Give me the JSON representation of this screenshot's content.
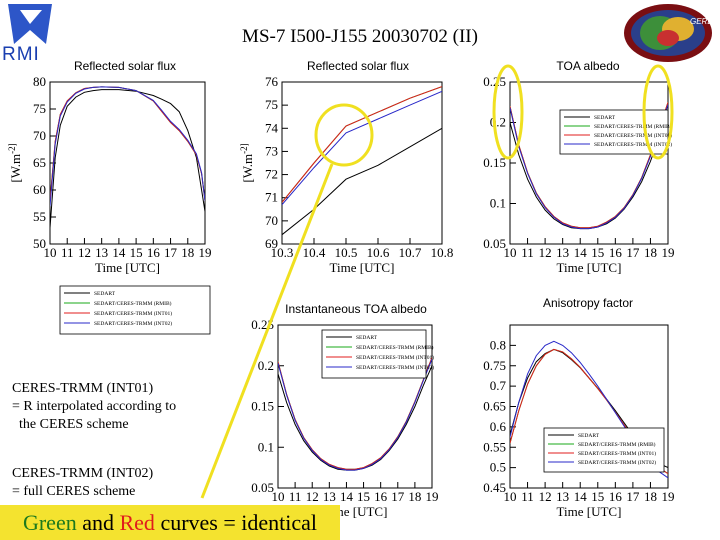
{
  "header": {
    "title": "MS-7 I500-J155 20030702 (II)"
  },
  "logo": {
    "text": "RMI"
  },
  "badge": {
    "text": "GERB"
  },
  "notes": {
    "int01_lines": [
      "CERES-TRMM (INT01)",
      "= R interpolated according to",
      "  the CERES scheme"
    ],
    "int02_lines": [
      "CERES-TRMM (INT02)",
      "= full CERES scheme"
    ]
  },
  "banner": {
    "green_word": "Green",
    "and_word": " and ",
    "red_word": "Red",
    "rest": " curves = identical"
  },
  "legend_entries": [
    "SEDART",
    "SEDART/CERES-TRMM (RMIB)",
    "SEDART/CERES-TRMM (INT01)",
    "SEDART/CERES-TRMM (INT02)"
  ],
  "series_colors": [
    "#000000",
    "#1aa81a",
    "#e01c1c",
    "#2828c8"
  ],
  "highlight_color": "#f0e020",
  "chart_data": [
    {
      "id": "flux-full",
      "type": "line",
      "title": "Reflected solar flux",
      "xlabel": "Time [UTC]",
      "ylabel": "[W.m^-2]",
      "xlim": [
        10,
        19
      ],
      "ylim": [
        50,
        80
      ],
      "xticks": [
        10,
        11,
        12,
        13,
        14,
        15,
        16,
        17,
        18,
        19
      ],
      "xtick_labels": [
        "10",
        "11",
        "12",
        "13",
        "14",
        "15",
        "16",
        "17",
        "18",
        "19"
      ],
      "yticks": [
        50,
        55,
        60,
        65,
        70,
        75,
        80
      ],
      "grid": false,
      "legend": "separate",
      "series": [
        {
          "x": [
            10,
            10.3,
            10.6,
            11,
            11.5,
            12,
            12.5,
            13,
            14,
            15,
            16,
            16.5,
            17,
            17.5,
            18,
            18.5,
            18.8,
            19
          ],
          "y": [
            53,
            66,
            72,
            75.5,
            77.2,
            78.1,
            78.4,
            78.6,
            78.6,
            78.3,
            77.5,
            76.8,
            76,
            74.5,
            71,
            66,
            60,
            56
          ]
        },
        {
          "x": [
            10,
            10.3,
            10.6,
            11,
            11.5,
            12,
            12.5,
            13,
            14,
            15,
            16,
            16.5,
            17,
            17.5,
            18,
            18.5,
            18.8,
            19
          ],
          "y": [
            58,
            69,
            74,
            76.5,
            78,
            78.8,
            79,
            79.1,
            79,
            78.4,
            76.5,
            74.5,
            72.5,
            71,
            69,
            66.5,
            63,
            58
          ]
        },
        {
          "x": [
            10,
            10.3,
            10.6,
            11,
            11.5,
            12,
            12.5,
            13,
            14,
            15,
            16,
            16.5,
            17,
            17.5,
            18,
            18.5,
            18.8,
            19
          ],
          "y": [
            58,
            69,
            74,
            76.5,
            78,
            78.8,
            79,
            79.1,
            79,
            78.4,
            76.5,
            74.5,
            72.5,
            71,
            69,
            66.5,
            63,
            58
          ]
        },
        {
          "x": [
            10,
            10.3,
            10.6,
            11,
            11.5,
            12,
            12.5,
            13,
            14,
            15,
            16,
            16.5,
            17,
            17.5,
            18,
            18.5,
            18.8,
            19
          ],
          "y": [
            57,
            68.5,
            73.7,
            76.3,
            77.9,
            78.7,
            79,
            79.1,
            79,
            78.4,
            76.6,
            74.7,
            72.7,
            71.2,
            69.2,
            66.7,
            63.2,
            58
          ]
        }
      ]
    },
    {
      "id": "flux-zoom",
      "type": "line",
      "title": "Reflected solar flux",
      "xlabel": "Time [UTC]",
      "ylabel": "[W.m^-2]",
      "xlim": [
        10.3,
        10.8
      ],
      "ylim": [
        69,
        76
      ],
      "xticks": [
        10.3,
        10.4,
        10.5,
        10.6,
        10.7,
        10.8
      ],
      "xtick_labels": [
        "10.3",
        "10.4",
        "10.5",
        "10.6",
        "10.7",
        "10.8"
      ],
      "yticks": [
        69,
        70,
        71,
        72,
        73,
        74,
        75,
        76
      ],
      "grid": false,
      "series": [
        {
          "x": [
            10.3,
            10.4,
            10.5,
            10.6,
            10.7,
            10.8
          ],
          "y": [
            69.4,
            70.5,
            71.8,
            72.4,
            73.2,
            74
          ]
        },
        {
          "x": [
            10.3,
            10.4,
            10.5,
            10.6,
            10.7,
            10.8
          ],
          "y": [
            70.8,
            72.5,
            74.1,
            74.7,
            75.3,
            75.8
          ]
        },
        {
          "x": [
            10.3,
            10.4,
            10.5,
            10.6,
            10.7,
            10.8
          ],
          "y": [
            70.8,
            72.5,
            74.1,
            74.7,
            75.3,
            75.8
          ]
        },
        {
          "x": [
            10.3,
            10.4,
            10.5,
            10.6,
            10.7,
            10.8
          ],
          "y": [
            70.7,
            72.3,
            73.8,
            74.4,
            75,
            75.6
          ]
        }
      ]
    },
    {
      "id": "toa-albedo",
      "type": "line",
      "title": "TOA albedo",
      "xlabel": "Time [UTC]",
      "xlim": [
        10,
        19
      ],
      "ylim": [
        0.05,
        0.25
      ],
      "xticks": [
        10,
        11,
        12,
        13,
        14,
        15,
        16,
        17,
        18,
        19
      ],
      "xtick_labels": [
        "10",
        "11",
        "12",
        "13",
        "14",
        "15",
        "16",
        "17",
        "18",
        "19"
      ],
      "yticks": [
        0.05,
        0.1,
        0.15,
        0.2,
        0.25
      ],
      "ytick_labels": [
        "0.05",
        "0.1",
        "0.15",
        "0.2",
        "0.25"
      ],
      "grid": false,
      "legend": "top-right",
      "series": [
        {
          "x": [
            10,
            10.5,
            11,
            11.5,
            12,
            12.5,
            13,
            13.5,
            14,
            14.5,
            15,
            15.5,
            16,
            16.5,
            17,
            17.5,
            18,
            18.5,
            19
          ],
          "y": [
            0.2,
            0.16,
            0.13,
            0.108,
            0.092,
            0.081,
            0.074,
            0.07,
            0.069,
            0.069,
            0.071,
            0.075,
            0.082,
            0.093,
            0.108,
            0.127,
            0.152,
            0.182,
            0.21
          ]
        },
        {
          "x": [
            10,
            10.5,
            11,
            11.5,
            12,
            12.5,
            13,
            13.5,
            14,
            14.5,
            15,
            15.5,
            16,
            16.5,
            17,
            17.5,
            18,
            18.5,
            19
          ],
          "y": [
            0.22,
            0.172,
            0.138,
            0.113,
            0.096,
            0.084,
            0.076,
            0.072,
            0.07,
            0.07,
            0.072,
            0.077,
            0.084,
            0.095,
            0.111,
            0.132,
            0.16,
            0.192,
            0.225
          ]
        },
        {
          "x": [
            10,
            10.5,
            11,
            11.5,
            12,
            12.5,
            13,
            13.5,
            14,
            14.5,
            15,
            15.5,
            16,
            16.5,
            17,
            17.5,
            18,
            18.5,
            19
          ],
          "y": [
            0.22,
            0.172,
            0.138,
            0.113,
            0.096,
            0.084,
            0.076,
            0.072,
            0.07,
            0.07,
            0.072,
            0.077,
            0.084,
            0.095,
            0.111,
            0.132,
            0.16,
            0.192,
            0.225
          ]
        },
        {
          "x": [
            10,
            10.5,
            11,
            11.5,
            12,
            12.5,
            13,
            13.5,
            14,
            14.5,
            15,
            15.5,
            16,
            16.5,
            17,
            17.5,
            18,
            18.5,
            19
          ],
          "y": [
            0.218,
            0.17,
            0.137,
            0.112,
            0.095,
            0.083,
            0.075,
            0.071,
            0.069,
            0.069,
            0.071,
            0.076,
            0.083,
            0.094,
            0.11,
            0.131,
            0.158,
            0.19,
            0.222
          ]
        }
      ]
    },
    {
      "id": "inst-toa-albedo",
      "type": "line",
      "title": "Instantaneous TOA albedo",
      "xlabel": "Time [UTC]",
      "xlim": [
        10,
        19
      ],
      "ylim": [
        0.05,
        0.25
      ],
      "xticks": [
        10,
        11,
        12,
        13,
        14,
        15,
        16,
        17,
        18,
        19
      ],
      "xtick_labels": [
        "10",
        "11",
        "12",
        "13",
        "14",
        "15",
        "16",
        "17",
        "18",
        "19"
      ],
      "yticks": [
        0.05,
        0.1,
        0.15,
        0.2,
        0.25
      ],
      "ytick_labels": [
        "0.05",
        "0.1",
        "0.15",
        "0.2",
        "0.25"
      ],
      "grid": false,
      "legend": "top-right",
      "series": [
        {
          "x": [
            10,
            10.5,
            11,
            11.5,
            12,
            12.5,
            13,
            13.5,
            14,
            14.5,
            15,
            15.5,
            16,
            16.5,
            17,
            17.5,
            18,
            18.5,
            19
          ],
          "y": [
            0.19,
            0.155,
            0.128,
            0.108,
            0.094,
            0.084,
            0.077,
            0.073,
            0.072,
            0.072,
            0.074,
            0.078,
            0.085,
            0.096,
            0.11,
            0.128,
            0.15,
            0.176,
            0.2
          ]
        },
        {
          "x": [
            10,
            10.5,
            11,
            11.5,
            12,
            12.5,
            13,
            13.5,
            14,
            14.5,
            15,
            15.5,
            16,
            16.5,
            17,
            17.5,
            18,
            18.5,
            19
          ],
          "y": [
            0.205,
            0.165,
            0.134,
            0.112,
            0.097,
            0.086,
            0.079,
            0.075,
            0.073,
            0.073,
            0.075,
            0.08,
            0.087,
            0.098,
            0.113,
            0.132,
            0.156,
            0.183,
            0.21
          ]
        },
        {
          "x": [
            10,
            10.5,
            11,
            11.5,
            12,
            12.5,
            13,
            13.5,
            14,
            14.5,
            15,
            15.5,
            16,
            16.5,
            17,
            17.5,
            18,
            18.5,
            19
          ],
          "y": [
            0.205,
            0.165,
            0.134,
            0.112,
            0.097,
            0.086,
            0.079,
            0.075,
            0.073,
            0.073,
            0.075,
            0.08,
            0.087,
            0.098,
            0.113,
            0.132,
            0.156,
            0.183,
            0.21
          ]
        },
        {
          "x": [
            10,
            10.5,
            11,
            11.5,
            12,
            12.5,
            13,
            13.5,
            14,
            14.5,
            15,
            15.5,
            16,
            16.5,
            17,
            17.5,
            18,
            18.5,
            19
          ],
          "y": [
            0.203,
            0.164,
            0.133,
            0.111,
            0.096,
            0.085,
            0.078,
            0.074,
            0.072,
            0.072,
            0.074,
            0.079,
            0.086,
            0.097,
            0.112,
            0.131,
            0.155,
            0.182,
            0.208
          ]
        }
      ]
    },
    {
      "id": "anisotropy",
      "type": "line",
      "title": "Anisotropy factor",
      "xlabel": "Time [UTC]",
      "xlim": [
        10,
        19
      ],
      "ylim": [
        0.45,
        0.85
      ],
      "xticks": [
        10,
        11,
        12,
        13,
        14,
        15,
        16,
        17,
        18,
        19
      ],
      "xtick_labels": [
        "10",
        "11",
        "12",
        "13",
        "14",
        "15",
        "16",
        "17",
        "18",
        "19"
      ],
      "yticks": [
        0.45,
        0.5,
        0.55,
        0.6,
        0.65,
        0.7,
        0.75,
        0.8
      ],
      "ytick_labels": [
        "0.45",
        "0.5",
        "0.55",
        "0.6",
        "0.65",
        "0.7",
        "0.75",
        "0.8"
      ],
      "grid": false,
      "legend": "bottom-right",
      "series": [
        {
          "x": [
            10,
            10.5,
            11,
            11.5,
            12,
            12.5,
            13,
            13.5,
            14,
            14.5,
            15,
            15.5,
            16,
            16.5,
            17,
            17.5,
            18,
            18.5,
            19
          ],
          "y": [
            0.58,
            0.66,
            0.72,
            0.76,
            0.78,
            0.79,
            0.782,
            0.765,
            0.745,
            0.72,
            0.695,
            0.668,
            0.64,
            0.61,
            0.58,
            0.553,
            0.53,
            0.51,
            0.5
          ]
        },
        {
          "x": [
            10,
            10.5,
            11,
            11.5,
            12,
            12.5,
            13,
            13.5,
            14,
            14.5,
            15,
            15.5,
            16,
            16.5,
            17,
            17.5,
            18,
            18.5,
            19
          ],
          "y": [
            0.56,
            0.64,
            0.705,
            0.75,
            0.778,
            0.79,
            0.784,
            0.767,
            0.746,
            0.72,
            0.694,
            0.666,
            0.636,
            0.605,
            0.574,
            0.546,
            0.52,
            0.5,
            0.485
          ]
        },
        {
          "x": [
            10,
            10.5,
            11,
            11.5,
            12,
            12.5,
            13,
            13.5,
            14,
            14.5,
            15,
            15.5,
            16,
            16.5,
            17,
            17.5,
            18,
            18.5,
            19
          ],
          "y": [
            0.56,
            0.64,
            0.705,
            0.75,
            0.778,
            0.79,
            0.784,
            0.767,
            0.746,
            0.72,
            0.694,
            0.666,
            0.636,
            0.605,
            0.574,
            0.546,
            0.52,
            0.5,
            0.485
          ]
        },
        {
          "x": [
            10,
            10.5,
            11,
            11.5,
            12,
            12.5,
            13,
            13.5,
            14,
            14.5,
            15,
            15.5,
            16,
            16.5,
            17,
            17.5,
            18,
            18.5,
            19
          ],
          "y": [
            0.575,
            0.66,
            0.73,
            0.775,
            0.8,
            0.81,
            0.8,
            0.782,
            0.758,
            0.73,
            0.7,
            0.668,
            0.635,
            0.602,
            0.57,
            0.54,
            0.513,
            0.49,
            0.475
          ]
        }
      ]
    }
  ]
}
